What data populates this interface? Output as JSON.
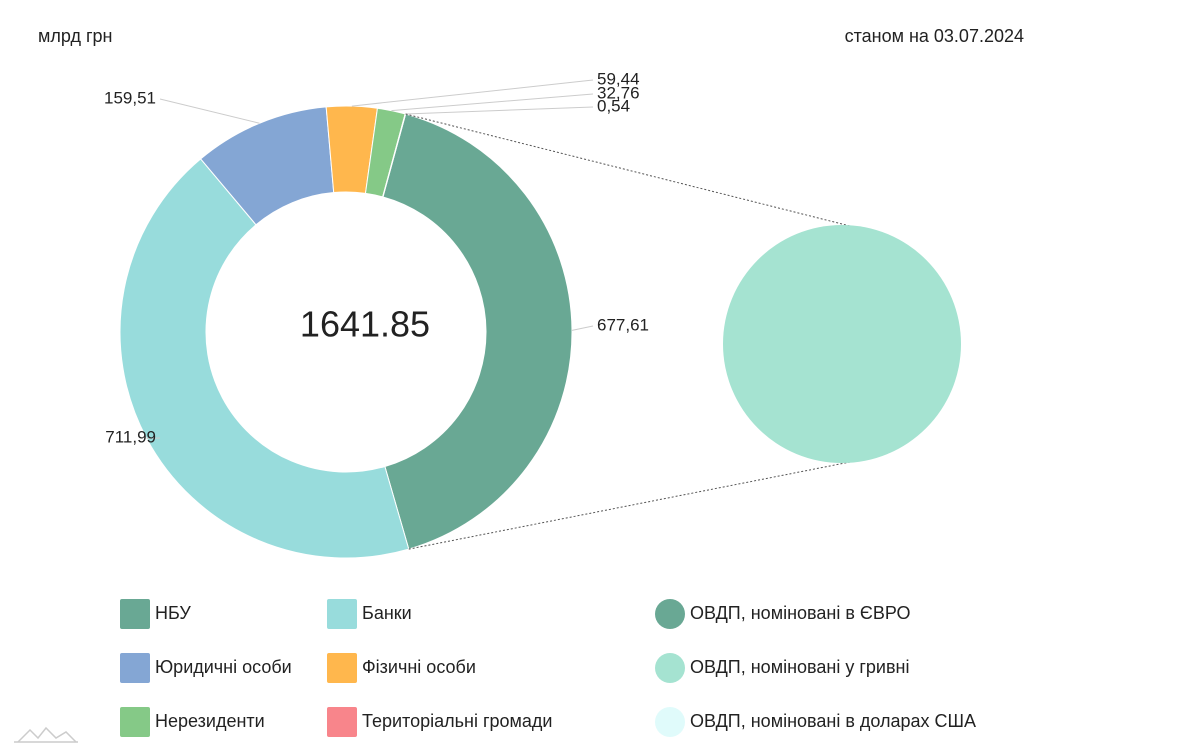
{
  "chart_data": [
    {
      "type": "donut",
      "unit_label": "млрд грн",
      "date_label": "станом на 03.07.2024",
      "total": 1641.85,
      "categories": [
        "НБУ",
        "Банки",
        "Юридичні особи",
        "Фізичні особи",
        "Нерезиденти",
        "Територіальні громади"
      ],
      "values": [
        677.61,
        711.99,
        159.51,
        59.44,
        32.76,
        0.54
      ],
      "value_labels": [
        "677,61",
        "711,99",
        "159,51",
        "59,44",
        "32,76",
        "0,54"
      ],
      "colors": [
        "#69a894",
        "#98dcdc",
        "#84a6d4",
        "#ffb74d",
        "#85c987",
        "#f8858b"
      ]
    },
    {
      "type": "pie",
      "categories": [
        "ОВДП, номіновані в ЄВРО",
        "ОВДП, номіновані у гривні",
        "ОВДП, номіновані в доларах США"
      ],
      "values": [
        0,
        677.61,
        0
      ],
      "colors": [
        "#69a894",
        "#a5e3d1",
        "#e0fbfb"
      ]
    }
  ]
}
